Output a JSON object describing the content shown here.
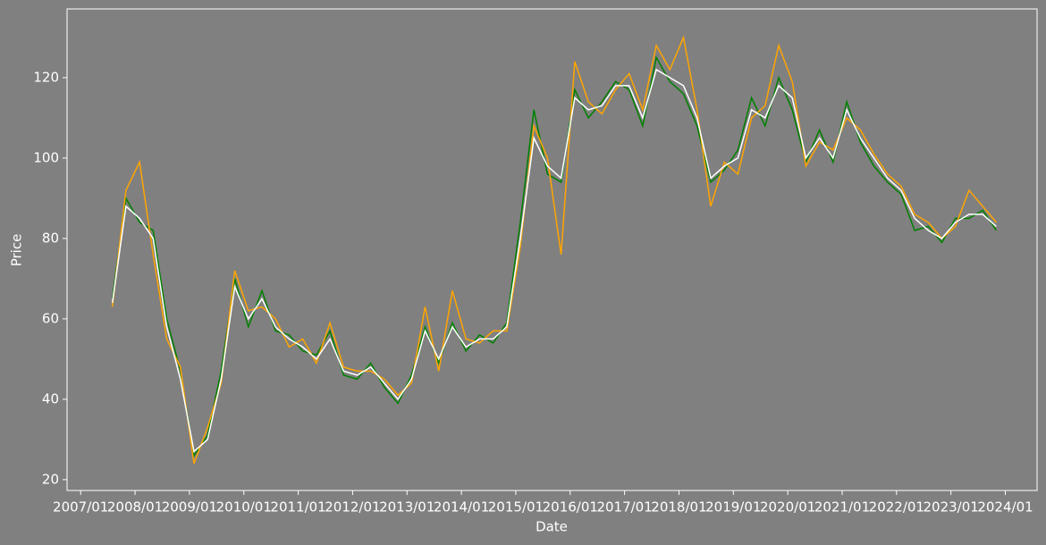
{
  "chart_data": {
    "type": "line",
    "xlabel": "Date",
    "ylabel": "Price",
    "x": [
      "2007/08",
      "2007/11",
      "2008/02",
      "2008/05",
      "2008/08",
      "2008/11",
      "2009/02",
      "2009/05",
      "2009/08",
      "2009/11",
      "2010/02",
      "2010/05",
      "2010/08",
      "2010/11",
      "2011/02",
      "2011/05",
      "2011/08",
      "2011/11",
      "2012/02",
      "2012/05",
      "2012/08",
      "2012/11",
      "2013/02",
      "2013/05",
      "2013/08",
      "2013/11",
      "2014/02",
      "2014/05",
      "2014/08",
      "2014/11",
      "2015/02",
      "2015/05",
      "2015/08",
      "2015/11",
      "2016/02",
      "2016/05",
      "2016/08",
      "2016/11",
      "2017/02",
      "2017/05",
      "2017/08",
      "2017/11",
      "2018/02",
      "2018/05",
      "2018/08",
      "2018/11",
      "2019/02",
      "2019/05",
      "2019/08",
      "2019/11",
      "2020/02",
      "2020/05",
      "2020/08",
      "2020/11",
      "2021/02",
      "2021/05",
      "2021/08",
      "2021/11",
      "2022/02",
      "2022/05",
      "2022/08",
      "2022/11",
      "2023/02",
      "2023/05",
      "2023/08",
      "2023/11"
    ],
    "series": [
      {
        "color": "#008000",
        "values": [
          65,
          90,
          84,
          82,
          60,
          47,
          26,
          31,
          47,
          70,
          58,
          67,
          57,
          56,
          52,
          51,
          57,
          46,
          45,
          49,
          43,
          39,
          46,
          58,
          49,
          59,
          52,
          56,
          54,
          59,
          84,
          112,
          96,
          94,
          117,
          110,
          114,
          119,
          117,
          108,
          125,
          119,
          116,
          108,
          94,
          97,
          102,
          115,
          108,
          120,
          112,
          99,
          107,
          99,
          114,
          104,
          98,
          94,
          91,
          82,
          83,
          79,
          85,
          85,
          87,
          82
        ]
      },
      {
        "color": "#ffa500",
        "values": [
          63,
          92,
          99,
          76,
          55,
          48,
          24,
          33,
          44,
          72,
          62,
          63,
          60,
          53,
          55,
          49,
          59,
          48,
          47,
          47,
          45,
          41,
          44,
          63,
          47,
          67,
          55,
          54,
          57,
          57,
          78,
          108,
          100,
          76,
          124,
          114,
          111,
          117,
          121,
          112,
          128,
          122,
          130,
          112,
          88,
          99,
          96,
          110,
          113,
          128,
          119,
          98,
          104,
          102,
          110,
          107,
          101,
          96,
          93,
          86,
          84,
          80,
          83,
          92,
          88,
          84
        ]
      },
      {
        "color": "#ffffff",
        "values": [
          64,
          88,
          85,
          80,
          58,
          45,
          27,
          30,
          45,
          68,
          60,
          65,
          58,
          55,
          53,
          50,
          55,
          47,
          46,
          48,
          44,
          40,
          45,
          57,
          50,
          58,
          53,
          55,
          55,
          58,
          80,
          105,
          98,
          95,
          115,
          112,
          113,
          118,
          118,
          110,
          122,
          120,
          118,
          110,
          95,
          98,
          100,
          112,
          110,
          118,
          115,
          100,
          105,
          100,
          112,
          105,
          100,
          95,
          92,
          85,
          82,
          80,
          84,
          86,
          86,
          83
        ]
      }
    ],
    "xlim": [
      "2006/10",
      "2024/08"
    ],
    "xticks": [
      "2007/01",
      "2008/01",
      "2009/01",
      "2010/01",
      "2011/01",
      "2012/01",
      "2013/01",
      "2014/01",
      "2015/01",
      "2016/01",
      "2017/01",
      "2018/01",
      "2019/01",
      "2020/01",
      "2021/01",
      "2022/01",
      "2023/01",
      "2024/01"
    ],
    "ylim": [
      17.3,
      137.1
    ],
    "yticks": [
      20,
      40,
      60,
      80,
      100,
      120
    ]
  }
}
